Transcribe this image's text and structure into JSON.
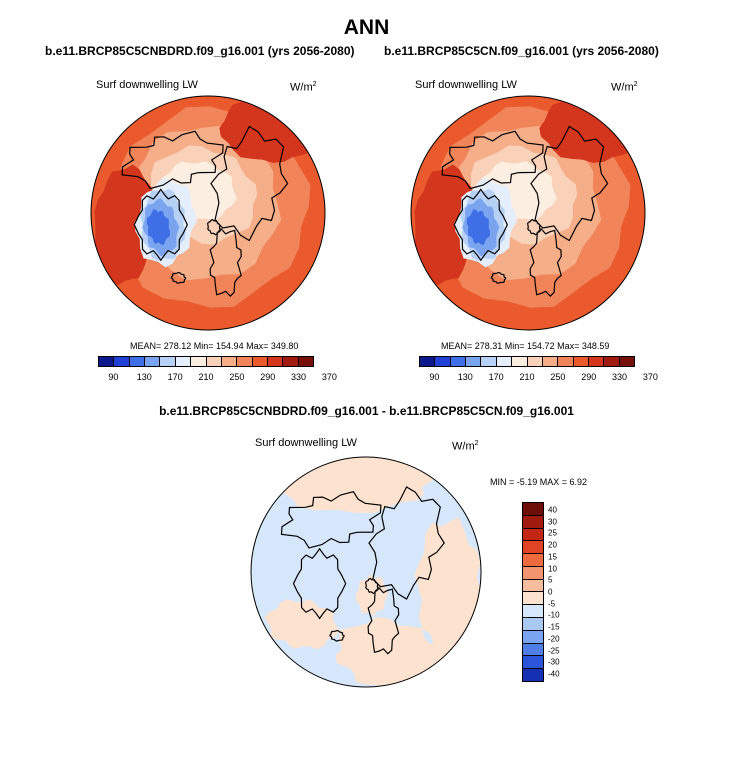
{
  "page_title": "ANN",
  "chart_data": [
    {
      "type": "heatmap",
      "projection": "polar-stereographic",
      "title": "b.e11.BRCP85C5CNBDRD.f09_g16.001 (yrs 2056-2080)",
      "variable": "Surf downwelling LW",
      "units": "W/m",
      "units_sup": "2",
      "stats_text": "MEAN= 278.12   Min= 154.94   Max= 349.80",
      "mean": 278.12,
      "min": 154.94,
      "max": 349.8,
      "colorbar_levels": [
        "90",
        "130",
        "170",
        "210",
        "250",
        "290",
        "330",
        "370"
      ]
    },
    {
      "type": "heatmap",
      "projection": "polar-stereographic",
      "title": "b.e11.BRCP85C5CN.f09_g16.001 (yrs 2056-2080)",
      "variable": "Surf downwelling LW",
      "units": "W/m",
      "units_sup": "2",
      "stats_text": "MEAN= 278.31   Min= 154.72   Max= 348.59",
      "mean": 278.31,
      "min": 154.72,
      "max": 348.59,
      "colorbar_levels": [
        "90",
        "130",
        "170",
        "210",
        "250",
        "290",
        "330",
        "370"
      ]
    },
    {
      "type": "heatmap",
      "projection": "polar-stereographic",
      "title": "b.e11.BRCP85C5CNBDRD.f09_g16.001 - b.e11.BRCP85C5CN.f09_g16.001",
      "variable": "Surf downwelling LW",
      "units": "W/m",
      "units_sup": "2",
      "stats_text": "MIN =  -5.19 MAX =   6.92",
      "min": -5.19,
      "max": 6.92,
      "colorbar_levels": [
        "40",
        "30",
        "25",
        "20",
        "15",
        "10",
        "5",
        "0",
        "-5",
        "-10",
        "-15",
        "-20",
        "-25",
        "-30",
        "-40"
      ]
    }
  ],
  "colors": {
    "abs_scale": [
      "#0a1a8c",
      "#1f3fd6",
      "#3f6fe6",
      "#7ba4f0",
      "#b7d1f6",
      "#e4eefc",
      "#fdeee2",
      "#f9d2b9",
      "#f6ae88",
      "#f2845a",
      "#ea5a2c",
      "#d3361d",
      "#a01a10",
      "#741007"
    ],
    "diff_scale": [
      "#6e0f07",
      "#a01a10",
      "#c42616",
      "#e14425",
      "#ec6a3e",
      "#f39470",
      "#f8bd9f",
      "#fde2cf",
      "#d6e7fb",
      "#a9c9f3",
      "#7ba4f0",
      "#4f7fe6",
      "#2a55d8",
      "#1530b2",
      "#0a1a8c"
    ]
  }
}
